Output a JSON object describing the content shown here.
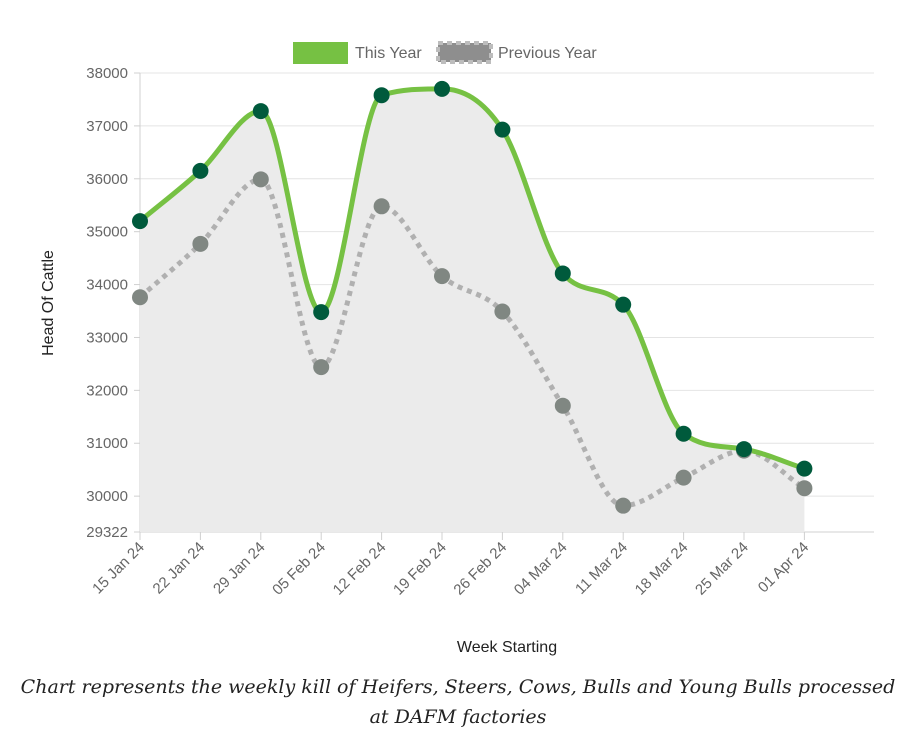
{
  "chart_data": {
    "type": "line",
    "categories": [
      "15 Jan 24",
      "22 Jan 24",
      "29 Jan 24",
      "05 Feb 24",
      "12 Feb 24",
      "19 Feb 24",
      "26 Feb 24",
      "04 Mar 24",
      "11 Mar 24",
      "18 Mar 24",
      "25 Mar 24",
      "01 Apr 24"
    ],
    "series": [
      {
        "name": "This Year",
        "color": "#76c143",
        "point_color": "#005a3c",
        "style": "solid",
        "values": [
          35200,
          36150,
          37280,
          33480,
          37580,
          37700,
          36930,
          34210,
          33620,
          31180,
          30890,
          30520
        ]
      },
      {
        "name": "Previous Year",
        "color": "#b0b0b0",
        "point_color": "#808782",
        "style": "dotted",
        "values": [
          33760,
          34770,
          35990,
          32440,
          35480,
          34160,
          33490,
          31710,
          29820,
          30350,
          30860,
          30150
        ]
      }
    ],
    "xlabel": "Week Starting",
    "ylabel": "Head Of Cattle",
    "ylim": [
      29322,
      38000
    ],
    "yticks": [
      38000,
      37000,
      36000,
      35000,
      34000,
      33000,
      32000,
      31000,
      30000,
      29322
    ],
    "grid": true,
    "legend": "top-center",
    "fill": "#ebebeb"
  },
  "caption": "Chart represents the weekly kill of Heifers, Steers, Cows, Bulls and Young Bulls processed at DAFM factories"
}
